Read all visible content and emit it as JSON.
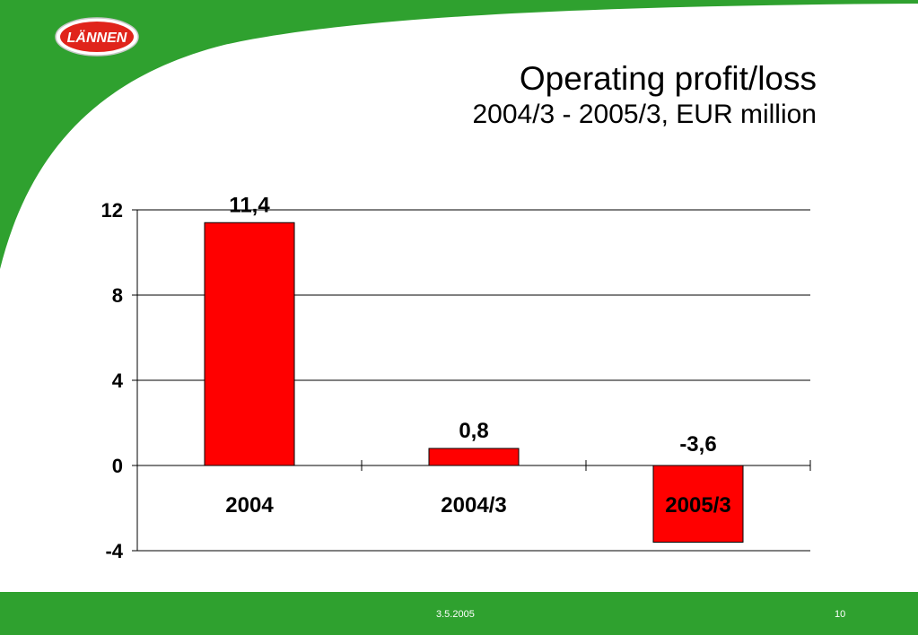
{
  "slide": {
    "title": "Operating profit/loss",
    "subtitle": "2004/3 - 2005/3, EUR million",
    "logo_text": "LÄNNEN",
    "footer_date": "3.5.2005",
    "page_number": "10"
  },
  "colors": {
    "brand_green": "#2fa12f",
    "bar_fill": "#ff0000",
    "bar_stroke": "#000000",
    "logo_red": "#e0241b"
  },
  "chart_data": {
    "type": "bar",
    "title": "Operating profit/loss",
    "subtitle": "2004/3 - 2005/3, EUR million",
    "categories": [
      "2004",
      "2004/3",
      "2005/3"
    ],
    "values": [
      11.4,
      0.8,
      -3.6
    ],
    "data_labels": [
      "11,4",
      "0,8",
      "-3,6"
    ],
    "ylim": [
      -4,
      12
    ],
    "yticks": [
      12,
      8,
      4,
      0,
      -4
    ],
    "ytick_labels": [
      "12",
      "8",
      "4",
      "0",
      "-4"
    ],
    "grid": true,
    "legend": "none"
  }
}
